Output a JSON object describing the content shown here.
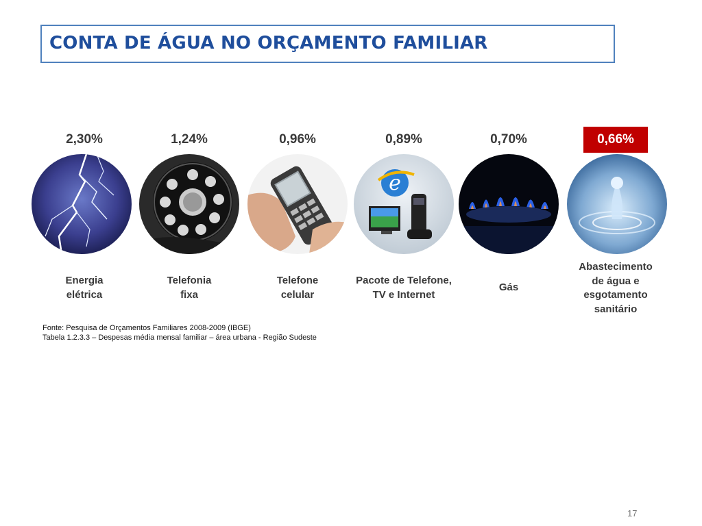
{
  "title": "CONTA DE ÁGUA NO ORÇAMENTO FAMILIAR",
  "items": [
    {
      "percent": "2,30%",
      "label_lines": [
        "Energia",
        "elétrica"
      ],
      "icon": "lightning-icon",
      "highlight": false
    },
    {
      "percent": "1,24%",
      "label_lines": [
        "Telefonia",
        "fixa"
      ],
      "icon": "rotary-phone-icon",
      "highlight": false
    },
    {
      "percent": "0,96%",
      "label_lines": [
        "Telefone",
        "celular"
      ],
      "icon": "mobile-phone-icon",
      "highlight": false
    },
    {
      "percent": "0,89%",
      "label_lines": [
        "Pacote de Telefone,",
        "TV e Internet"
      ],
      "icon": "internet-tv-phone-icon",
      "highlight": false
    },
    {
      "percent": "0,70%",
      "label_lines": [
        "Gás"
      ],
      "icon": "gas-flame-icon",
      "highlight": false
    },
    {
      "percent": "0,66%",
      "label_lines": [
        "Abastecimento",
        "de água e",
        "esgotamento",
        "sanitário"
      ],
      "icon": "water-drop-icon",
      "highlight": true
    }
  ],
  "source": {
    "line1": "Fonte: Pesquisa de Orçamentos Familiares 2008-2009 (IBGE)",
    "line2": "Tabela 1.2.3.3 – Despesas média mensal  familiar – área urbana - Região Sudeste"
  },
  "page_number": "17",
  "colors": {
    "title": "#1f4e9c",
    "title_border": "#4f81bd",
    "highlight": "#c00000"
  }
}
